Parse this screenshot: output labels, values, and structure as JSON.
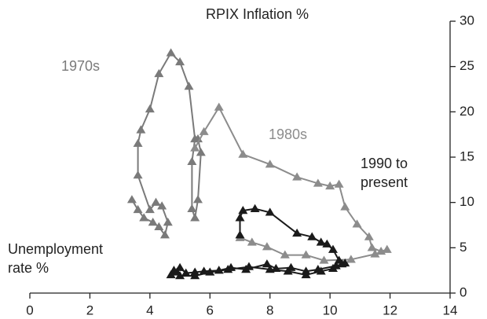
{
  "chart_data": {
    "type": "line",
    "xlabel": "Unemployment rate %",
    "ylabel": "RPIX Inflation %",
    "xlim": [
      0,
      14
    ],
    "xticks": [
      0,
      2,
      4,
      6,
      8,
      10,
      12,
      14
    ],
    "ylim": [
      0,
      30
    ],
    "yticks": [
      0,
      5,
      10,
      15,
      20,
      25,
      30
    ],
    "y_axis_side": "right",
    "series": [
      {
        "name": "1970s",
        "color": "#7a7a7a",
        "x": [
          3.4,
          3.6,
          3.8,
          4.1,
          4.3,
          4.5,
          4.6,
          4.4,
          4.2,
          4.0,
          3.6,
          3.6,
          3.7,
          4.0,
          4.3,
          4.7,
          5.0,
          5.3,
          5.5,
          5.4,
          5.4,
          5.5,
          5.6,
          5.7,
          5.6
        ],
        "values": [
          10.3,
          9.2,
          8.3,
          7.8,
          7.3,
          6.4,
          7.8,
          9.6,
          10,
          9.2,
          13,
          16.5,
          18,
          20.3,
          24.2,
          26.5,
          25.5,
          22.8,
          17,
          14.5,
          9.3,
          8.3,
          10.3,
          15.5,
          17
        ]
      },
      {
        "name": "1980s",
        "color": "#8c8c8c",
        "x": [
          5.5,
          5.8,
          6.3,
          7.1,
          8.0,
          8.9,
          9.6,
          10.0,
          10.3,
          10.5,
          10.9,
          11.3,
          11.4,
          11.7,
          11.9,
          11.5,
          10.7,
          9.8,
          9.2,
          8.5,
          7.9,
          7.4,
          7.0
        ],
        "values": [
          16,
          17.8,
          20.5,
          15.3,
          14.2,
          12.8,
          12.1,
          11.8,
          12,
          9.5,
          7.6,
          6.2,
          5,
          4.6,
          4.8,
          4.3,
          3.7,
          3.6,
          4.2,
          4.2,
          5.1,
          5.6,
          6.1
        ]
      },
      {
        "name": "1990 to present",
        "color": "#1a1a1a",
        "x": [
          7.0,
          7.0,
          7.1,
          7.5,
          8.0,
          8.9,
          9.4,
          9.7,
          9.9,
          10.1,
          10.3,
          10.5,
          10.2,
          9.6,
          9.2,
          8.7,
          8.2,
          7.9,
          7.2,
          6.7,
          6.3,
          5.8,
          5.5,
          5.2,
          5.0,
          4.9,
          4.7,
          4.8,
          5.0,
          5.5,
          6.0,
          6.6,
          7.3,
          8.0,
          8.6,
          9.2,
          9.7,
          10.1,
          10.4
        ],
        "values": [
          6.4,
          8.3,
          9.1,
          9.3,
          8.9,
          6.6,
          6.2,
          5.6,
          5.4,
          4.8,
          3.6,
          3.3,
          3.0,
          2.6,
          2.4,
          2.8,
          2.7,
          3.2,
          2.6,
          2.8,
          2.5,
          2.4,
          2.3,
          2.2,
          2.8,
          2.3,
          2.0,
          2.5,
          1.9,
          1.9,
          2.3,
          2.6,
          2.9,
          2.6,
          2.4,
          2.0,
          2.4,
          2.7,
          3.2
        ]
      }
    ]
  }
}
